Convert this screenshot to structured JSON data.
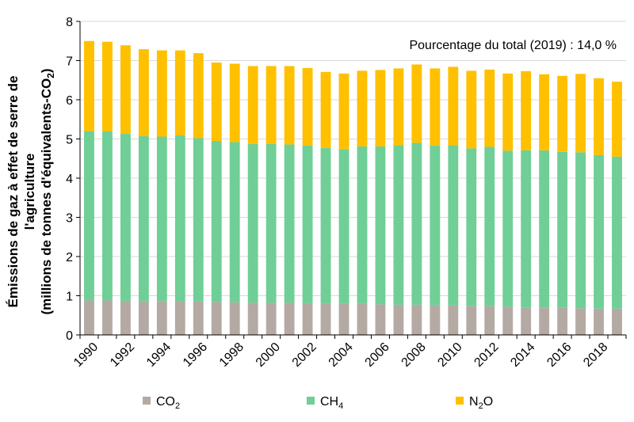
{
  "chart_data": {
    "type": "bar",
    "stacked": true,
    "categories": [
      "1990",
      "1991",
      "1992",
      "1993",
      "1994",
      "1995",
      "1996",
      "1997",
      "1998",
      "1999",
      "2000",
      "2001",
      "2002",
      "2003",
      "2004",
      "2005",
      "2006",
      "2007",
      "2008",
      "2009",
      "2010",
      "2011",
      "2012",
      "2013",
      "2014",
      "2015",
      "2016",
      "2017",
      "2018",
      "2019"
    ],
    "x_tick_labels": [
      "1990",
      "1992",
      "1994",
      "1996",
      "1998",
      "2000",
      "2002",
      "2004",
      "2006",
      "2008",
      "2010",
      "2012",
      "2014",
      "2016",
      "2018"
    ],
    "series": [
      {
        "name": "CO",
        "subscript": "2",
        "color": "#b5aaa3",
        "values": [
          0.88,
          0.88,
          0.87,
          0.86,
          0.86,
          0.86,
          0.85,
          0.84,
          0.83,
          0.82,
          0.82,
          0.82,
          0.81,
          0.8,
          0.8,
          0.79,
          0.78,
          0.77,
          0.77,
          0.76,
          0.75,
          0.74,
          0.73,
          0.72,
          0.7,
          0.7,
          0.69,
          0.68,
          0.67,
          0.67
        ]
      },
      {
        "name": "CH",
        "subscript": "4",
        "color": "#6fcf97",
        "values": [
          4.32,
          4.32,
          4.26,
          4.21,
          4.2,
          4.23,
          4.17,
          4.11,
          4.09,
          4.05,
          4.05,
          4.04,
          4.02,
          3.97,
          3.94,
          4.02,
          4.03,
          4.07,
          4.13,
          4.07,
          4.09,
          4.02,
          4.07,
          3.98,
          4.01,
          4.01,
          3.98,
          3.98,
          3.92,
          3.88
        ]
      },
      {
        "name": "N",
        "subscript": "2",
        "name_suffix": "O",
        "color": "#ffc000",
        "values": [
          2.3,
          2.28,
          2.26,
          2.22,
          2.2,
          2.17,
          2.17,
          2.0,
          2.0,
          1.99,
          1.99,
          2.0,
          1.98,
          1.94,
          1.93,
          1.93,
          1.95,
          1.96,
          2.0,
          1.97,
          2.0,
          1.98,
          1.97,
          1.97,
          2.02,
          1.94,
          1.94,
          2.0,
          1.96,
          1.91
        ]
      }
    ],
    "ylabel_line1": "Émissions de gaz à effet de serre de",
    "ylabel_line2": "l'agriculture",
    "ylabel_line3": "(millions de tonnes d'équivalents-CO",
    "ylabel_line3_sub": "2",
    "ylabel_line3_end": ")",
    "ylim": [
      0,
      8
    ],
    "yticks": [
      0,
      1,
      2,
      3,
      4,
      5,
      6,
      7,
      8
    ],
    "annotation": "Pourcentage du total (2019) : 14,0 %",
    "grid": "horizontal",
    "legend_position": "bottom"
  }
}
